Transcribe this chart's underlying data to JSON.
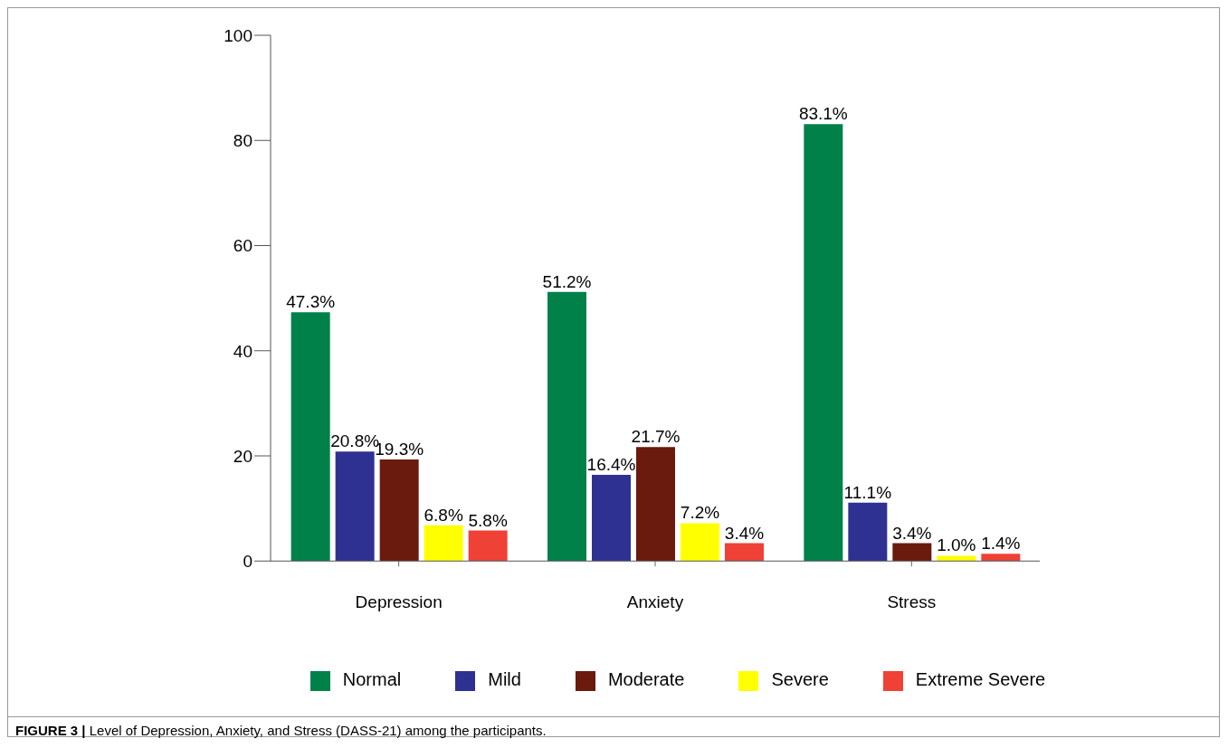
{
  "chart_data": {
    "type": "bar",
    "categories": [
      "Depression",
      "Anxiety",
      "Stress"
    ],
    "series": [
      {
        "name": "Normal",
        "color": "#00814a",
        "values": [
          47.3,
          51.2,
          83.1
        ],
        "value_labels": [
          "47.3%",
          "51.2%",
          "83.1%"
        ]
      },
      {
        "name": "Mild",
        "color": "#2e3192",
        "values": [
          20.8,
          16.4,
          11.1
        ],
        "value_labels": [
          "20.8%",
          "16.4%",
          "11.1%"
        ]
      },
      {
        "name": "Moderate",
        "color": "#6b1a0e",
        "values": [
          19.3,
          21.7,
          3.4
        ],
        "value_labels": [
          "19.3%",
          "21.7%",
          "3.4%"
        ]
      },
      {
        "name": "Severe",
        "color": "#ffff00",
        "values": [
          6.8,
          7.2,
          1.0
        ],
        "value_labels": [
          "6.8%",
          "7.2%",
          "1.0%"
        ]
      },
      {
        "name": "Extreme Severe",
        "color": "#ef4136",
        "values": [
          5.8,
          3.4,
          1.4
        ],
        "value_labels": [
          "5.8%",
          "3.4%",
          "1.4%"
        ]
      }
    ],
    "ylim": [
      0,
      100
    ],
    "yticks": [
      0,
      20,
      40,
      60,
      80,
      100
    ],
    "grid": false,
    "legend": "bottom",
    "annotations": [
      "FIGURE 3 | Level of Depression, Anxiety, and Stress (DASS-21) among the participants."
    ]
  }
}
